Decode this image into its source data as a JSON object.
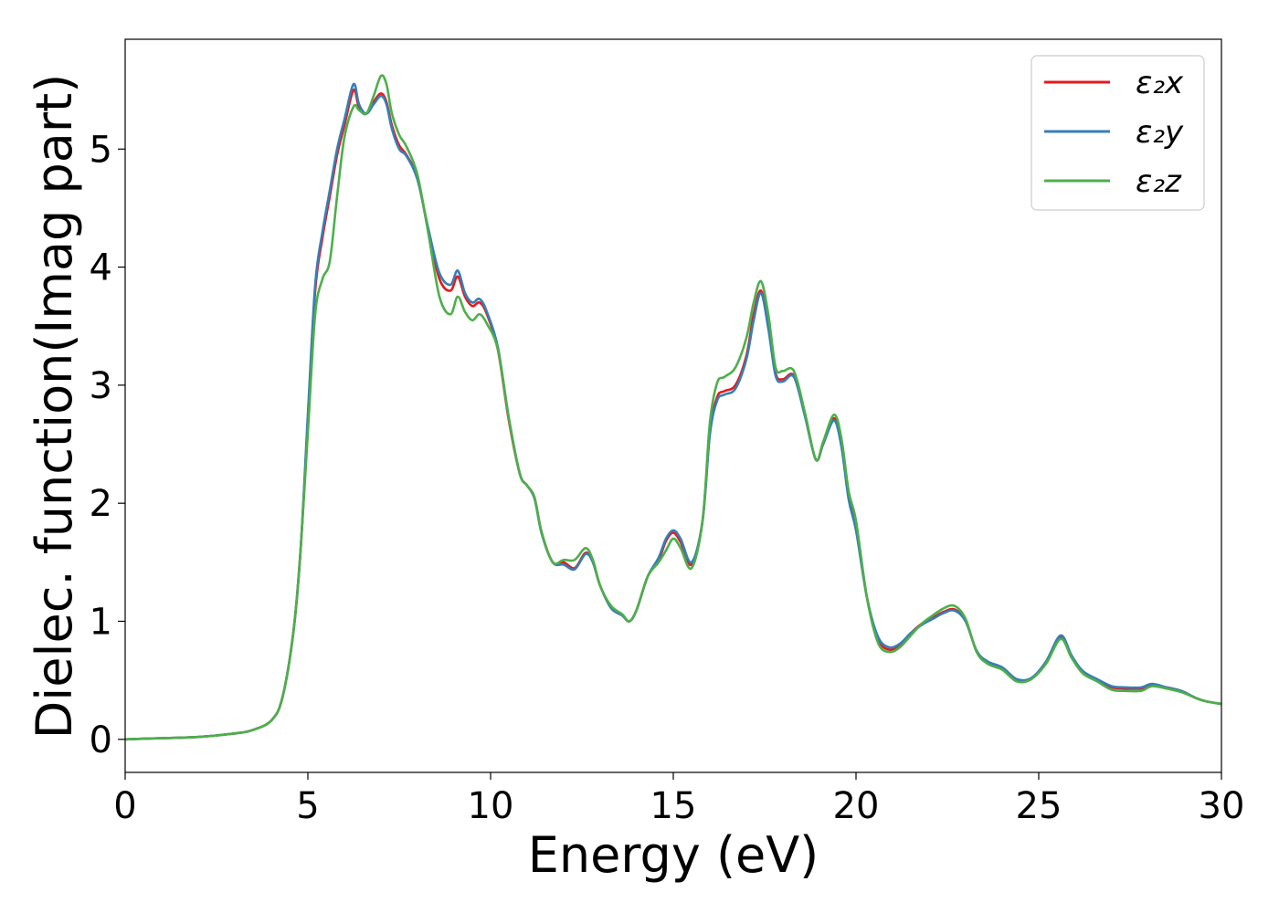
{
  "chart_data": {
    "type": "line",
    "title": "",
    "xlabel": "Energy (eV)",
    "ylabel": "Dielec. function(Imag part)",
    "xlim": [
      0,
      30
    ],
    "ylim": [
      -0.28,
      5.93
    ],
    "xticks": [
      0,
      5,
      10,
      15,
      20,
      25,
      30
    ],
    "yticks": [
      0,
      1,
      2,
      3,
      4,
      5
    ],
    "grid": false,
    "legend_position": "top-right",
    "x": [
      0,
      1,
      2,
      3,
      3.5,
      4.0,
      4.3,
      4.6,
      4.8,
      5.0,
      5.2,
      5.4,
      5.6,
      5.8,
      6.0,
      6.25,
      6.4,
      6.6,
      6.8,
      7.0,
      7.15,
      7.3,
      7.5,
      7.7,
      8.0,
      8.3,
      8.6,
      8.9,
      9.1,
      9.3,
      9.5,
      9.7,
      9.9,
      10.2,
      10.5,
      10.8,
      11.0,
      11.2,
      11.4,
      11.7,
      12.0,
      12.3,
      12.6,
      12.8,
      13.0,
      13.3,
      13.6,
      13.8,
      14.0,
      14.3,
      14.6,
      14.8,
      15.0,
      15.2,
      15.5,
      15.8,
      16.0,
      16.2,
      16.4,
      16.7,
      17.0,
      17.2,
      17.4,
      17.6,
      17.8,
      18.0,
      18.3,
      18.6,
      18.9,
      19.1,
      19.4,
      19.6,
      19.8,
      20.0,
      20.3,
      20.6,
      20.9,
      21.2,
      21.5,
      21.8,
      22.1,
      22.4,
      22.7,
      23.0,
      23.3,
      23.6,
      24.0,
      24.4,
      24.8,
      25.2,
      25.6,
      25.9,
      26.2,
      26.6,
      27.0,
      27.4,
      27.8,
      28.1,
      28.5,
      28.9,
      29.3,
      29.6,
      30.0
    ],
    "series": [
      {
        "name": "ε₂x",
        "color": "#e41a1c",
        "values": [
          0.0,
          0.01,
          0.02,
          0.05,
          0.08,
          0.16,
          0.35,
          0.9,
          1.6,
          2.7,
          3.8,
          4.25,
          4.6,
          4.95,
          5.2,
          5.5,
          5.35,
          5.3,
          5.4,
          5.47,
          5.4,
          5.2,
          5.03,
          4.95,
          4.75,
          4.3,
          3.9,
          3.8,
          3.92,
          3.75,
          3.67,
          3.7,
          3.6,
          3.3,
          2.7,
          2.25,
          2.15,
          2.05,
          1.75,
          1.5,
          1.5,
          1.45,
          1.58,
          1.5,
          1.3,
          1.12,
          1.05,
          1.0,
          1.1,
          1.38,
          1.52,
          1.68,
          1.75,
          1.67,
          1.48,
          1.85,
          2.6,
          2.9,
          2.95,
          3.0,
          3.25,
          3.6,
          3.8,
          3.5,
          3.1,
          3.05,
          3.08,
          2.75,
          2.37,
          2.5,
          2.72,
          2.5,
          2.05,
          1.8,
          1.2,
          0.85,
          0.76,
          0.8,
          0.9,
          0.98,
          1.03,
          1.08,
          1.1,
          1.0,
          0.75,
          0.65,
          0.6,
          0.5,
          0.52,
          0.65,
          0.87,
          0.7,
          0.58,
          0.5,
          0.44,
          0.43,
          0.43,
          0.46,
          0.44,
          0.41,
          0.35,
          0.32,
          0.3
        ]
      },
      {
        "name": "ε₂y",
        "color": "#377eb8",
        "values": [
          0.0,
          0.01,
          0.02,
          0.05,
          0.08,
          0.16,
          0.35,
          0.9,
          1.6,
          2.75,
          3.85,
          4.3,
          4.65,
          5.0,
          5.25,
          5.55,
          5.38,
          5.3,
          5.38,
          5.45,
          5.38,
          5.17,
          5.0,
          4.94,
          4.74,
          4.32,
          3.95,
          3.85,
          3.97,
          3.78,
          3.7,
          3.73,
          3.62,
          3.32,
          2.72,
          2.25,
          2.15,
          2.04,
          1.74,
          1.5,
          1.48,
          1.44,
          1.57,
          1.5,
          1.3,
          1.11,
          1.05,
          1.0,
          1.1,
          1.38,
          1.54,
          1.7,
          1.77,
          1.7,
          1.5,
          1.85,
          2.58,
          2.87,
          2.92,
          2.97,
          3.22,
          3.55,
          3.78,
          3.48,
          3.08,
          3.03,
          3.07,
          2.74,
          2.37,
          2.5,
          2.7,
          2.48,
          2.03,
          1.77,
          1.2,
          0.87,
          0.78,
          0.81,
          0.9,
          0.97,
          1.02,
          1.07,
          1.09,
          1.0,
          0.75,
          0.66,
          0.61,
          0.51,
          0.52,
          0.66,
          0.88,
          0.71,
          0.58,
          0.51,
          0.45,
          0.44,
          0.44,
          0.47,
          0.44,
          0.41,
          0.35,
          0.32,
          0.3
        ]
      },
      {
        "name": "ε₂z",
        "color": "#4daf4a",
        "values": [
          0.0,
          0.01,
          0.02,
          0.05,
          0.08,
          0.16,
          0.35,
          0.9,
          1.6,
          2.6,
          3.6,
          3.9,
          4.05,
          4.6,
          5.1,
          5.36,
          5.33,
          5.3,
          5.45,
          5.62,
          5.55,
          5.3,
          5.12,
          5.02,
          4.78,
          4.28,
          3.75,
          3.6,
          3.75,
          3.62,
          3.55,
          3.6,
          3.52,
          3.3,
          2.72,
          2.25,
          2.15,
          2.05,
          1.75,
          1.5,
          1.52,
          1.52,
          1.62,
          1.52,
          1.3,
          1.13,
          1.06,
          1.0,
          1.1,
          1.38,
          1.5,
          1.6,
          1.7,
          1.62,
          1.45,
          1.85,
          2.68,
          3.02,
          3.07,
          3.15,
          3.4,
          3.7,
          3.88,
          3.6,
          3.15,
          3.12,
          3.12,
          2.77,
          2.37,
          2.52,
          2.75,
          2.55,
          2.1,
          1.85,
          1.2,
          0.82,
          0.74,
          0.78,
          0.88,
          0.98,
          1.05,
          1.11,
          1.13,
          1.02,
          0.74,
          0.64,
          0.59,
          0.49,
          0.51,
          0.64,
          0.85,
          0.69,
          0.56,
          0.49,
          0.42,
          0.41,
          0.41,
          0.45,
          0.43,
          0.4,
          0.35,
          0.32,
          0.3
        ]
      }
    ]
  }
}
